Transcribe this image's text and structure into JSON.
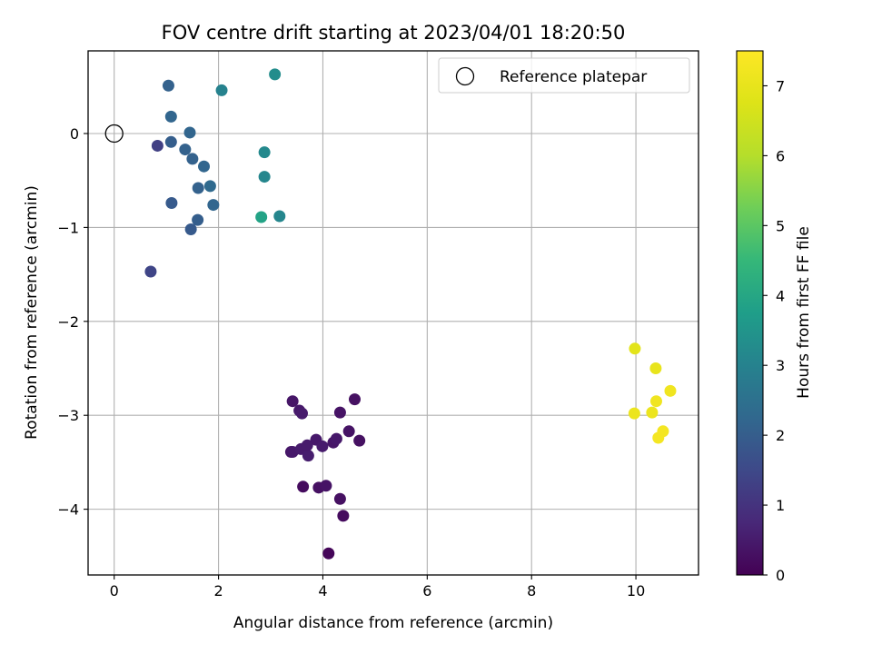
{
  "chart_data": {
    "type": "scatter",
    "title": "FOV centre drift starting at 2023/04/01 18:20:50",
    "xlabel": "Angular distance from reference (arcmin)",
    "ylabel": "Rotation from reference (arcmin)",
    "xlim": [
      -0.5,
      11.2
    ],
    "ylim": [
      -4.7,
      0.88
    ],
    "xticks": [
      0,
      2,
      4,
      6,
      8,
      10
    ],
    "yticks": [
      0,
      -1,
      -2,
      -3,
      -4
    ],
    "xtick_labels": [
      "0",
      "2",
      "4",
      "6",
      "8",
      "10"
    ],
    "ytick_labels": [
      "0",
      "−1",
      "−2",
      "−3",
      "−4"
    ],
    "grid": true,
    "legend": {
      "position": "top-right",
      "entries": [
        {
          "label": "Reference platepar",
          "marker": "open-circle"
        }
      ]
    },
    "reference_point": {
      "x": 0,
      "y": 0
    },
    "colorbar": {
      "label": "Hours from first FF file",
      "colormap": "viridis",
      "range": [
        0,
        7.5
      ],
      "ticks": [
        0,
        1,
        2,
        3,
        4,
        5,
        6,
        7
      ],
      "tick_labels": [
        "0",
        "1",
        "2",
        "3",
        "4",
        "5",
        "6",
        "7"
      ]
    },
    "points": [
      {
        "x": 4.11,
        "y": -4.47,
        "c": 0.1
      },
      {
        "x": 4.39,
        "y": -4.07,
        "c": 0.2
      },
      {
        "x": 4.33,
        "y": -3.89,
        "c": 0.3
      },
      {
        "x": 3.62,
        "y": -3.76,
        "c": 0.2
      },
      {
        "x": 3.92,
        "y": -3.77,
        "c": 0.3
      },
      {
        "x": 4.06,
        "y": -3.75,
        "c": 0.35
      },
      {
        "x": 3.39,
        "y": -3.39,
        "c": 0.4
      },
      {
        "x": 3.42,
        "y": -3.39,
        "c": 0.45
      },
      {
        "x": 3.58,
        "y": -3.36,
        "c": 0.5
      },
      {
        "x": 3.72,
        "y": -3.43,
        "c": 0.55
      },
      {
        "x": 3.7,
        "y": -3.32,
        "c": 0.5
      },
      {
        "x": 3.87,
        "y": -3.26,
        "c": 0.45
      },
      {
        "x": 3.99,
        "y": -3.33,
        "c": 0.5
      },
      {
        "x": 4.2,
        "y": -3.29,
        "c": 0.4
      },
      {
        "x": 4.26,
        "y": -3.25,
        "c": 0.45
      },
      {
        "x": 4.5,
        "y": -3.17,
        "c": 0.35
      },
      {
        "x": 4.7,
        "y": -3.27,
        "c": 0.3
      },
      {
        "x": 3.42,
        "y": -2.85,
        "c": 0.4
      },
      {
        "x": 3.55,
        "y": -2.95,
        "c": 0.45
      },
      {
        "x": 3.6,
        "y": -2.98,
        "c": 0.5
      },
      {
        "x": 4.33,
        "y": -2.97,
        "c": 0.35
      },
      {
        "x": 4.61,
        "y": -2.83,
        "c": 0.3
      },
      {
        "x": 0.7,
        "y": -1.47,
        "c": 1.4
      },
      {
        "x": 0.83,
        "y": -0.13,
        "c": 1.3
      },
      {
        "x": 1.04,
        "y": 0.51,
        "c": 2.1
      },
      {
        "x": 1.09,
        "y": 0.18,
        "c": 2.2
      },
      {
        "x": 1.09,
        "y": -0.09,
        "c": 2.0
      },
      {
        "x": 1.1,
        "y": -0.74,
        "c": 1.9
      },
      {
        "x": 1.36,
        "y": -0.17,
        "c": 2.1
      },
      {
        "x": 1.45,
        "y": 0.01,
        "c": 2.2
      },
      {
        "x": 1.5,
        "y": -0.27,
        "c": 2.1
      },
      {
        "x": 1.47,
        "y": -1.02,
        "c": 1.9
      },
      {
        "x": 1.6,
        "y": -0.92,
        "c": 2.0
      },
      {
        "x": 1.61,
        "y": -0.58,
        "c": 2.1
      },
      {
        "x": 1.72,
        "y": -0.35,
        "c": 2.2
      },
      {
        "x": 1.84,
        "y": -0.56,
        "c": 2.3
      },
      {
        "x": 1.9,
        "y": -0.76,
        "c": 2.2
      },
      {
        "x": 2.06,
        "y": 0.46,
        "c": 3.0
      },
      {
        "x": 2.82,
        "y": -0.89,
        "c": 3.9
      },
      {
        "x": 2.88,
        "y": -0.46,
        "c": 3.1
      },
      {
        "x": 2.88,
        "y": -0.2,
        "c": 3.2
      },
      {
        "x": 3.08,
        "y": 0.63,
        "c": 3.3
      },
      {
        "x": 3.17,
        "y": -0.88,
        "c": 3.1
      },
      {
        "x": 9.98,
        "y": -2.29,
        "c": 6.9
      },
      {
        "x": 9.97,
        "y": -2.98,
        "c": 7.1
      },
      {
        "x": 10.38,
        "y": -2.5,
        "c": 7.0
      },
      {
        "x": 10.31,
        "y": -2.97,
        "c": 7.1
      },
      {
        "x": 10.39,
        "y": -2.85,
        "c": 7.2
      },
      {
        "x": 10.43,
        "y": -3.24,
        "c": 7.3
      },
      {
        "x": 10.52,
        "y": -3.17,
        "c": 7.3
      },
      {
        "x": 10.66,
        "y": -2.74,
        "c": 7.2
      }
    ]
  }
}
